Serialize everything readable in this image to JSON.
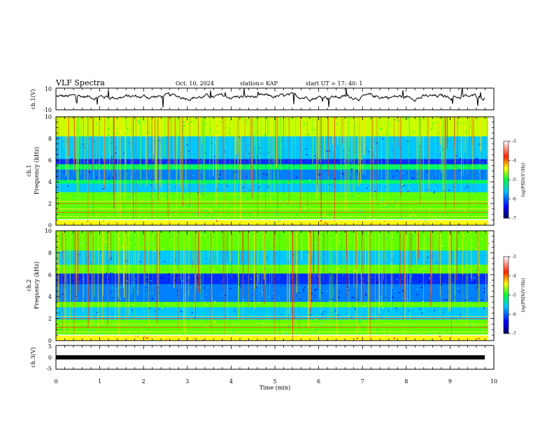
{
  "header": {
    "title": "VLF Spectra",
    "date": "Oct. 10, 2024",
    "station": "station= KAP",
    "start": "start  UT =   17: 40: 1"
  },
  "chart_data": [
    {
      "type": "line",
      "name": "ch1-waveform",
      "ylabel": "ch.1(V)",
      "ylim": [
        -10,
        10
      ],
      "yticks": [
        "10",
        "-10"
      ],
      "xlim": [
        0,
        10
      ],
      "x_extent_min": 9.8,
      "approx_level": 2,
      "approx_amplitude": 4
    },
    {
      "type": "heatmap",
      "name": "ch1-spectrogram",
      "ylabel_channel": "ch.1",
      "ylabel": "Frequency  (kHz)",
      "ylim": [
        0,
        10
      ],
      "yticks": [
        "0",
        "2",
        "4",
        "6",
        "8",
        "10"
      ],
      "xlim": [
        0,
        10
      ],
      "colorbar": {
        "label": "log(PSD)(V²/Hz)",
        "range": [
          -7,
          -3
        ],
        "ticks": [
          "-3",
          "-4",
          "-5",
          "-6",
          "-7"
        ]
      }
    },
    {
      "type": "heatmap",
      "name": "ch2-spectrogram",
      "ylabel_channel": "ch.2",
      "ylabel": "Frequency  (kHz)",
      "ylim": [
        0,
        10
      ],
      "yticks": [
        "0",
        "2",
        "4",
        "6",
        "8",
        "10"
      ],
      "xlim": [
        0,
        10
      ],
      "colorbar": {
        "label": "log(PSD)(V²/Hz)",
        "range": [
          -7,
          -3
        ],
        "ticks": [
          "-3",
          "-4",
          "-5",
          "-6",
          "-7"
        ]
      }
    },
    {
      "type": "line",
      "name": "ch3-waveform",
      "ylabel": "ch.3(V)",
      "ylim": [
        -5,
        5
      ],
      "yticks": [
        "5",
        "0",
        "-5"
      ],
      "xlim": [
        0,
        10
      ],
      "approx_level": 0
    }
  ],
  "xaxis": {
    "label": "Time  (min)",
    "ticks": [
      "0",
      "1",
      "2",
      "3",
      "4",
      "5",
      "6",
      "7",
      "8",
      "9",
      "10"
    ]
  }
}
